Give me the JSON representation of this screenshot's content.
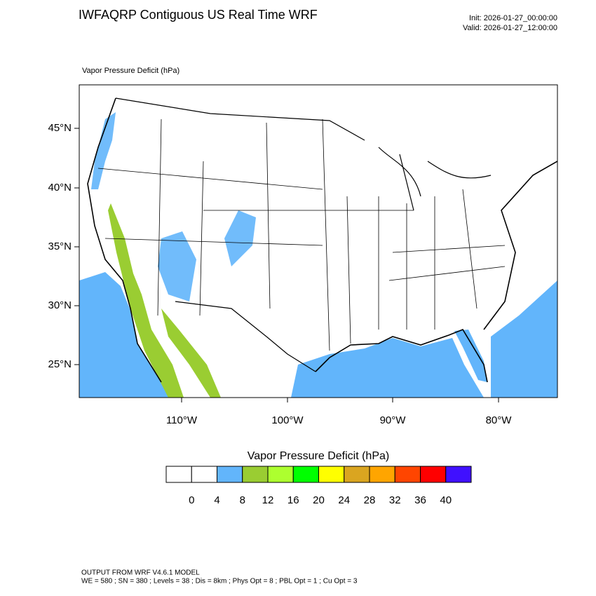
{
  "title": "IWFAQRP Contiguous US Real Time WRF",
  "init": "Init: 2026-01-27_00:00:00",
  "valid": "Valid: 2026-01-27_12:00:00",
  "map": {
    "subtitle": "Vapor Pressure Deficit   (hPa)",
    "lat_labels": [
      "45°N",
      "40°N",
      "35°N",
      "30°N",
      "25°N"
    ],
    "lon_labels": [
      "110°W",
      "100°W",
      "90°W",
      "80°W"
    ]
  },
  "colorbar": {
    "title": "Vapor Pressure Deficit  (hPa)",
    "colors": [
      "#ffffff",
      "#ffffff",
      "#62b5fb",
      "#9acd32",
      "#adff2f",
      "#00ff00",
      "#ffff00",
      "#daa520",
      "#ffa500",
      "#ff4500",
      "#ff0000",
      "#4010ff"
    ],
    "labels": [
      0,
      4,
      8,
      12,
      16,
      20,
      24,
      28,
      32,
      36,
      40
    ]
  },
  "footer": {
    "line1": "OUTPUT FROM WRF V4.6.1 MODEL",
    "line2": "WE = 580 ; SN = 380 ; Levels = 38 ; Dis = 8km ; Phys Opt = 8 ; PBL Opt = 1 ; Cu Opt = 3"
  }
}
